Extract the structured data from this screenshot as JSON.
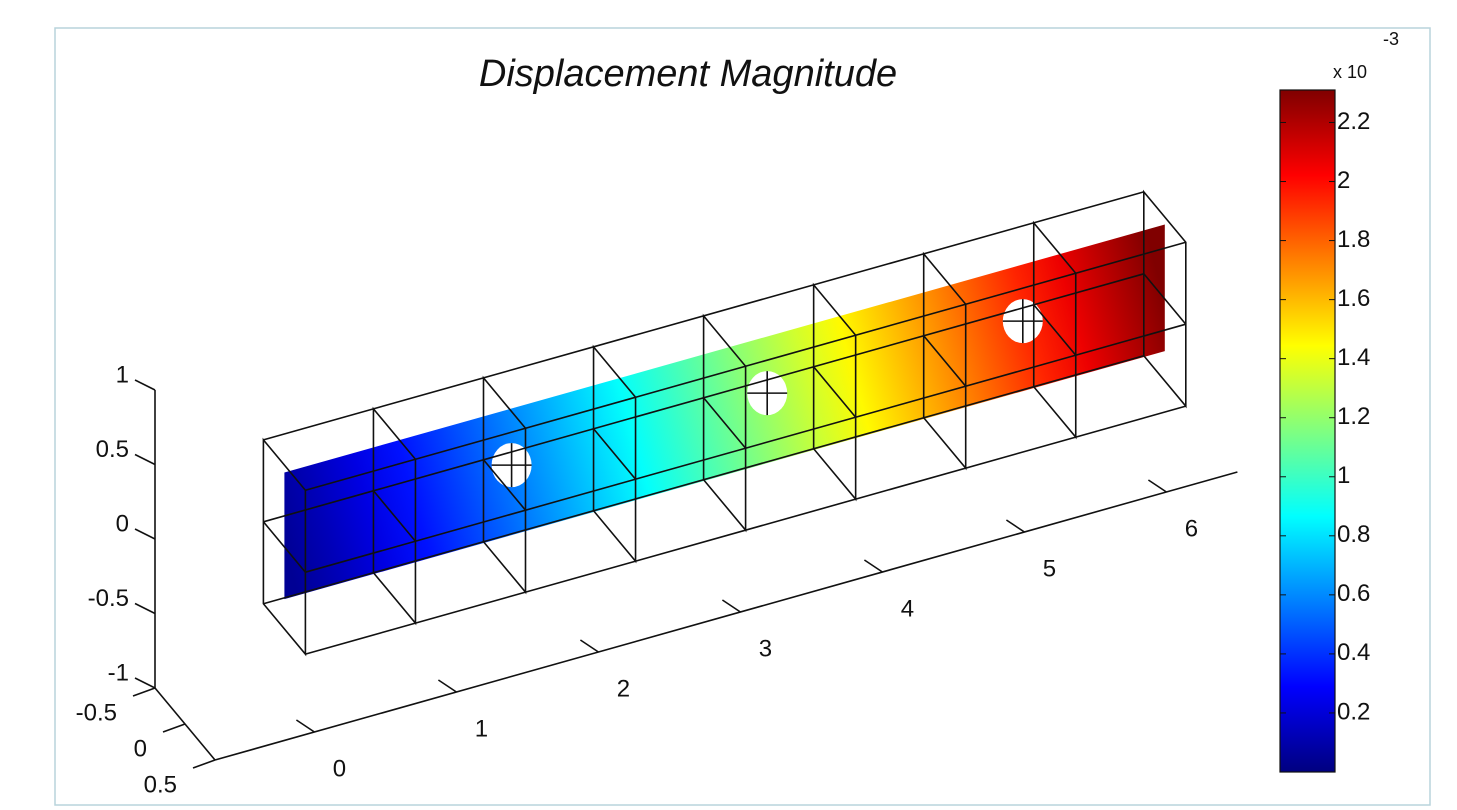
{
  "chart_data": {
    "type": "surface3d",
    "title": "Displacement Magnitude",
    "xlim": [
      -0.7,
      6.5
    ],
    "ylim": [
      -0.5,
      0.5
    ],
    "zlim": [
      -1,
      1
    ],
    "xticks": [
      0,
      1,
      2,
      3,
      4,
      5,
      6
    ],
    "yticks": [
      -0.5,
      0,
      0.5
    ],
    "zticks": [
      -1,
      -0.5,
      0,
      0.5,
      1
    ],
    "colormap": "jet",
    "colorbar": {
      "label": "x 10",
      "exponent": "-3",
      "lim": [
        0,
        2.31
      ],
      "ticks": [
        0.2,
        0.4,
        0.6,
        0.8,
        1,
        1.2,
        1.4,
        1.6,
        1.8,
        2,
        2.2
      ]
    }
  }
}
